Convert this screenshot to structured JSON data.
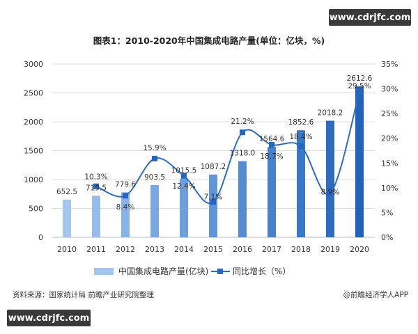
{
  "watermark": "www.cdrjfc.com",
  "source": "资料来源：国家统计局 前瞻产业研究院整理",
  "credit": "@前瞻经济学人APP",
  "chart_data": {
    "type": "bar+line",
    "title": "图表1：2010-2020年中国集成电路产量(单位：亿块，%)",
    "categories": [
      "2010",
      "2011",
      "2012",
      "2013",
      "2014",
      "2015",
      "2016",
      "2017",
      "2018",
      "2019",
      "2020"
    ],
    "series": [
      {
        "name": "中国集成电路产量(亿块)",
        "type": "bar",
        "axis": "left",
        "values": [
          652.5,
          719.5,
          779.6,
          903.5,
          1015.5,
          1087.2,
          1318.0,
          1564.6,
          1852.6,
          2018.2,
          2612.6
        ],
        "labels": [
          "652.5",
          "719.5",
          "779.6",
          "903.5",
          "1015.5",
          "1087.2",
          "1318.0",
          "1564.6",
          "1852.6",
          "2018.2",
          "2612.6"
        ]
      },
      {
        "name": "同比增长（%）",
        "type": "line",
        "axis": "right",
        "values": [
          null,
          10.3,
          8.4,
          15.9,
          12.4,
          7.1,
          21.2,
          18.7,
          18.4,
          8.9,
          29.5
        ],
        "labels": [
          "",
          "10.3%",
          "8.4%",
          "15.9%",
          "12.4%",
          "7.1%",
          "21.2%",
          "18.7%",
          "18.4%",
          "8.9%",
          "29.5%"
        ]
      }
    ],
    "y_left": {
      "range": [
        0,
        3000
      ],
      "ticks": [
        "0",
        "500",
        "1000",
        "1500",
        "2000",
        "2500",
        "3000"
      ]
    },
    "y_right": {
      "range": [
        0,
        35
      ],
      "ticks": [
        "0%",
        "5%",
        "10%",
        "15%",
        "20%",
        "25%",
        "30%",
        "35%"
      ]
    },
    "grid": true,
    "legend": "bottom",
    "colors": {
      "bar_light": "#a3c6ef",
      "bar_dark": "#1f63bd",
      "line": "#2a6cc4",
      "marker": "#2466c2"
    }
  }
}
